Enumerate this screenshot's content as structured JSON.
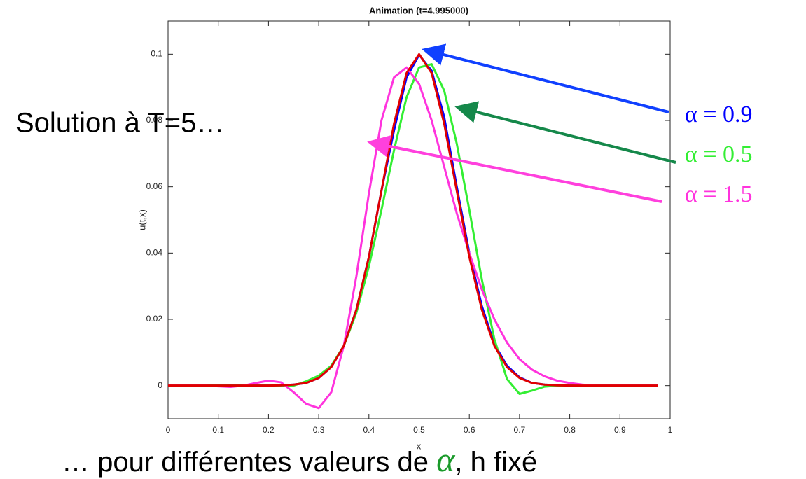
{
  "chart_data": {
    "type": "line",
    "title": "Animation (t=4.995000)",
    "xlabel": "x",
    "ylabel": "u(t,x)",
    "xlim": [
      0,
      1
    ],
    "ylim": [
      -0.01,
      0.11
    ],
    "xticks": [
      0,
      0.1,
      0.2,
      0.3,
      0.4,
      0.5,
      0.6,
      0.7,
      0.8,
      0.9,
      1
    ],
    "yticks": [
      0,
      0.02,
      0.04,
      0.06,
      0.08,
      0.1
    ],
    "grid": false,
    "x": [
      0,
      0.025,
      0.05,
      0.075,
      0.1,
      0.125,
      0.15,
      0.175,
      0.2,
      0.225,
      0.25,
      0.275,
      0.3,
      0.325,
      0.35,
      0.375,
      0.4,
      0.425,
      0.45,
      0.475,
      0.5,
      0.525,
      0.55,
      0.575,
      0.6,
      0.625,
      0.65,
      0.675,
      0.7,
      0.725,
      0.75,
      0.775,
      0.8,
      0.825,
      0.85,
      0.875,
      0.9,
      0.925,
      0.95,
      0.975
    ],
    "series": [
      {
        "name": "α = 0.9",
        "color": "#0000ff",
        "values": [
          0,
          0,
          0,
          0,
          0,
          0,
          0,
          0,
          0,
          0.0001,
          0.0003,
          0.0008,
          0.0023,
          0.0056,
          0.012,
          0.0229,
          0.0389,
          0.0588,
          0.077,
          0.093,
          0.0998,
          0.095,
          0.081,
          0.06,
          0.04,
          0.024,
          0.0125,
          0.006,
          0.0025,
          0.0008,
          0.0003,
          0.0001,
          0,
          0,
          0,
          0,
          0,
          0,
          0,
          0
        ]
      },
      {
        "name": "α = 0.5",
        "color": "#33ee33",
        "values": [
          0,
          0,
          0,
          0,
          0,
          0,
          0,
          0,
          0,
          0,
          0,
          0.0013,
          0.003,
          0.006,
          0.012,
          0.022,
          0.036,
          0.053,
          0.071,
          0.087,
          0.096,
          0.097,
          0.089,
          0.073,
          0.053,
          0.032,
          0.014,
          0.002,
          -0.0025,
          -0.0015,
          -0.0003,
          0,
          0,
          0,
          0,
          0,
          0,
          0,
          0,
          0
        ]
      },
      {
        "name": "α = 1.5",
        "color": "#ff33dd",
        "values": [
          0,
          0,
          0,
          0,
          -0.0002,
          -0.0004,
          0,
          0.0008,
          0.0015,
          0.001,
          -0.002,
          -0.0055,
          -0.0068,
          -0.002,
          0.012,
          0.033,
          0.058,
          0.08,
          0.093,
          0.096,
          0.091,
          0.08,
          0.066,
          0.052,
          0.04,
          0.029,
          0.02,
          0.013,
          0.008,
          0.0048,
          0.0028,
          0.0015,
          0.0008,
          0.0003,
          0,
          0,
          0,
          0,
          0,
          0
        ]
      },
      {
        "color": "#e00000",
        "values": [
          0,
          0,
          0,
          0,
          0,
          0,
          0,
          0,
          0,
          0.0001,
          0.0003,
          0.0008,
          0.0023,
          0.0056,
          0.012,
          0.0229,
          0.0389,
          0.0588,
          0.079,
          0.0943,
          0.1,
          0.0943,
          0.079,
          0.0588,
          0.0389,
          0.0229,
          0.012,
          0.0056,
          0.0023,
          0.0008,
          0.0003,
          0.0001,
          0,
          0,
          0,
          0,
          0,
          0,
          0,
          0
        ]
      }
    ],
    "annotations": [
      "Solution à T=5…",
      "… pour différentes valeurs de ",
      "α",
      ", h fixé"
    ]
  }
}
